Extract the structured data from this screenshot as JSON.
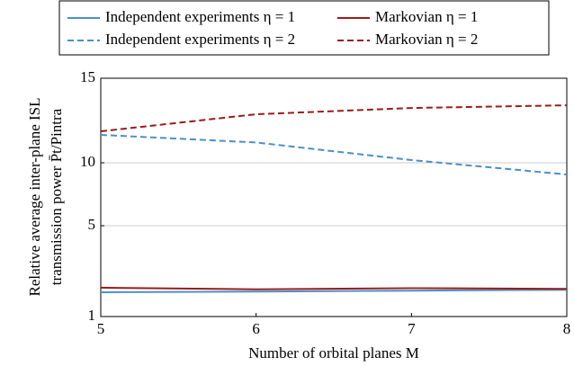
{
  "chart_data": {
    "type": "line",
    "xlabel": "Number of orbital planes M",
    "ylabel": [
      "Relative average inter-plane ISL",
      "transmission power P̄t/Pintra"
    ],
    "x": [
      5,
      6,
      7,
      8
    ],
    "xlim": [
      5,
      8
    ],
    "xticks": [
      5,
      6,
      7,
      8
    ],
    "ylim": [
      1,
      15
    ],
    "yticks": [
      1,
      5,
      10,
      15
    ],
    "grid": true,
    "legend": "top",
    "series": [
      {
        "name": "Independent experiments η = 1",
        "color": "#4a90c8",
        "dash": "solid",
        "values": [
          2.07,
          2.1,
          2.14,
          2.18
        ]
      },
      {
        "name": "Markovian η = 1",
        "color": "#9b1b1b",
        "dash": "solid",
        "values": [
          2.27,
          2.2,
          2.25,
          2.22
        ]
      },
      {
        "name": "Independent experiments η = 2",
        "color": "#4a90c8",
        "dash": "dashed",
        "values": [
          11.65,
          11.2,
          10.16,
          9.07
        ]
      },
      {
        "name": "Markovian η = 2",
        "color": "#9b1b1b",
        "dash": "dashed",
        "values": [
          11.86,
          12.87,
          13.24,
          13.4
        ]
      }
    ]
  }
}
